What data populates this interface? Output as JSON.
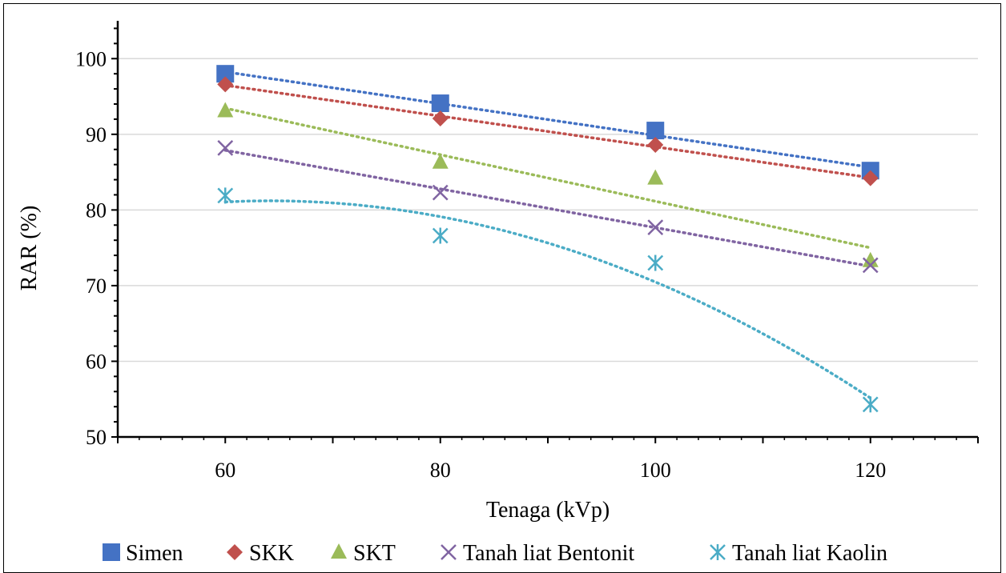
{
  "chart_data": {
    "type": "scatter",
    "title": "",
    "xlabel": "Tenaga (kVp)",
    "ylabel": "RAR (%)",
    "xlim": [
      50,
      130
    ],
    "ylim": [
      50,
      105
    ],
    "x_ticks": [
      60,
      80,
      100,
      120
    ],
    "y_ticks": [
      50,
      60,
      70,
      80,
      90,
      100
    ],
    "grid": "horizontal",
    "legend_position": "bottom",
    "trendlines": "dotted",
    "x": [
      60,
      80,
      100,
      120
    ],
    "series": [
      {
        "name": "Simen",
        "marker": "square",
        "color": "#4472C4",
        "values": [
          98.0,
          94.1,
          90.5,
          85.2
        ]
      },
      {
        "name": "SKK",
        "marker": "diamond",
        "color": "#C0504D",
        "values": [
          96.6,
          92.1,
          88.6,
          84.2
        ]
      },
      {
        "name": "SKT",
        "marker": "triangle",
        "color": "#9BBB59",
        "values": [
          93.1,
          86.3,
          84.2,
          73.3
        ]
      },
      {
        "name": "Tanah liat Bentonit",
        "marker": "x",
        "color": "#8064A2",
        "values": [
          88.2,
          82.3,
          77.7,
          72.7
        ]
      },
      {
        "name": "Tanah liat Kaolin",
        "marker": "star",
        "color": "#4BACC6",
        "values": [
          81.9,
          76.6,
          73.0,
          54.3
        ]
      }
    ]
  }
}
